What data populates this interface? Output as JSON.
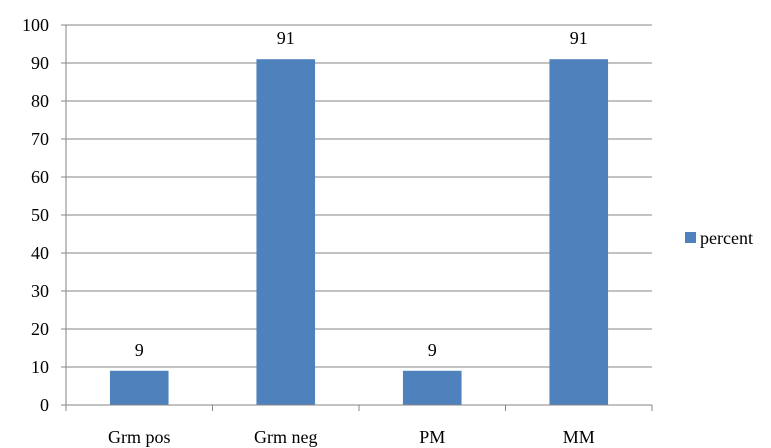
{
  "chart_data": {
    "type": "bar",
    "categories": [
      "Grm pos",
      "Grm neg",
      "PM",
      "MM"
    ],
    "series": [
      {
        "name": "percent",
        "values": [
          9,
          91,
          9,
          91
        ],
        "color": "#4f81bd"
      }
    ],
    "data_labels": [
      "9",
      "91",
      "9",
      "91"
    ],
    "y_ticks": [
      "0",
      "10",
      "20",
      "30",
      "40",
      "50",
      "60",
      "70",
      "80",
      "90",
      "100"
    ],
    "ylim": [
      0,
      100
    ],
    "y_tick_step": 10,
    "grid": true,
    "legend": "right",
    "title": "",
    "xlabel": "",
    "ylabel": ""
  },
  "colors": {
    "grid": "#868686",
    "axis": "#868686",
    "bar": "#4f81bd"
  }
}
